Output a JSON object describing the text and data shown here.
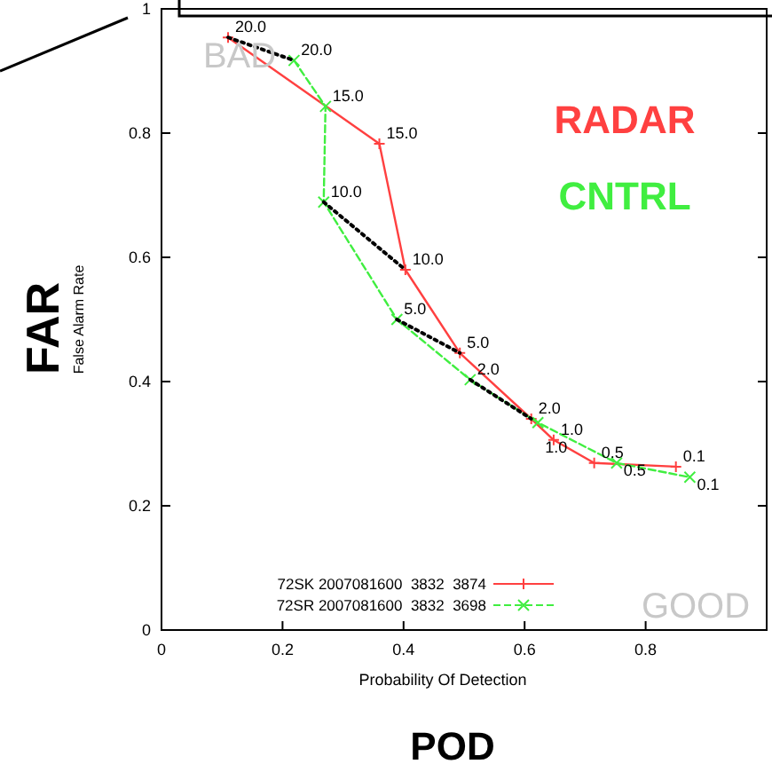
{
  "chart_data": {
    "type": "line",
    "xlabel": "Probability Of Detection",
    "ylabel": "False Alarm Rate",
    "xlim": [
      0,
      1
    ],
    "ylim": [
      0,
      1
    ],
    "xticks": [
      0,
      0.2,
      0.4,
      0.6,
      0.8
    ],
    "yticks": [
      0,
      0.2,
      0.4,
      0.6,
      0.8,
      1
    ],
    "legend": "bottom",
    "grid": false,
    "series": [
      {
        "name": "72SK 2007081600  3832  3874",
        "color": "#ff4040",
        "marker": "cross",
        "line_style": "solid",
        "x": [
          0.11,
          0.36,
          0.403,
          0.493,
          0.611,
          0.648,
          0.715,
          0.85
        ],
        "values": [
          0.954,
          0.783,
          0.58,
          0.446,
          0.34,
          0.306,
          0.269,
          0.263
        ]
      },
      {
        "name": "72SR 2007081600  3832  3698",
        "color": "#40ee40",
        "marker": "cross",
        "line_style": "dashed",
        "x": [
          0.219,
          0.271,
          0.268,
          0.389,
          0.51,
          0.622,
          0.752,
          0.873
        ],
        "values": [
          0.917,
          0.843,
          0.689,
          0.5,
          0.403,
          0.334,
          0.269,
          0.246
        ]
      },
      {
        "color": "#000000",
        "marker": "none",
        "line_style": "dotted",
        "x": [
          0.11,
          0.219
        ],
        "values": [
          0.954,
          0.917
        ]
      },
      {
        "color": "#000000",
        "marker": "none",
        "line_style": "dotted",
        "x": [
          0.268,
          0.403
        ],
        "values": [
          0.689,
          0.58
        ]
      },
      {
        "color": "#000000",
        "marker": "none",
        "line_style": "dotted",
        "x": [
          0.389,
          0.493
        ],
        "values": [
          0.5,
          0.446
        ]
      },
      {
        "color": "#000000",
        "marker": "none",
        "line_style": "dotted",
        "x": [
          0.51,
          0.611
        ],
        "values": [
          0.403,
          0.34
        ]
      }
    ],
    "annotations": [
      "FAR",
      "POD",
      "RADAR",
      "CNTRL",
      "BAD",
      "GOOD",
      {
        "text": "20.0",
        "x": 0.11,
        "y": 0.954
      },
      {
        "text": "15.0",
        "x": 0.36,
        "y": 0.783
      },
      {
        "text": "10.0",
        "x": 0.403,
        "y": 0.58
      },
      {
        "text": "5.0",
        "x": 0.493,
        "y": 0.446
      },
      {
        "text": "2.0",
        "x": 0.611,
        "y": 0.34
      },
      {
        "text": "1.0",
        "x": 0.648,
        "y": 0.306
      },
      {
        "text": "0.5",
        "x": 0.715,
        "y": 0.269
      },
      {
        "text": "0.1",
        "x": 0.85,
        "y": 0.263
      },
      {
        "text": "20.0",
        "x": 0.219,
        "y": 0.917
      },
      {
        "text": "15.0",
        "x": 0.271,
        "y": 0.843
      },
      {
        "text": "10.0",
        "x": 0.268,
        "y": 0.689
      },
      {
        "text": "5.0",
        "x": 0.389,
        "y": 0.5
      },
      {
        "text": "2.0",
        "x": 0.51,
        "y": 0.403
      },
      {
        "text": "1.0",
        "x": 0.622,
        "y": 0.334
      },
      {
        "text": "0.5",
        "x": 0.752,
        "y": 0.269
      },
      {
        "text": "0.1",
        "x": 0.873,
        "y": 0.246
      }
    ]
  }
}
